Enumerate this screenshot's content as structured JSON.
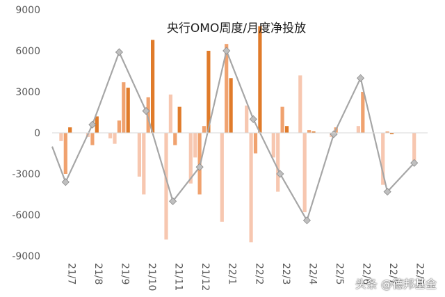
{
  "chart_data": {
    "type": "bar+line",
    "title": "央行OMO周度/月度净投放",
    "ylim": [
      -9000,
      9000
    ],
    "yticks": [
      9000,
      6000,
      3000,
      0,
      -3000,
      -6000,
      -9000
    ],
    "categories": [
      "21/7",
      "21/8",
      "21/9",
      "21/10",
      "21/11",
      "21/12",
      "22/1",
      "22/2",
      "22/3",
      "22/4",
      "22/5",
      "22/6",
      "22/7",
      "22/8"
    ],
    "weekly_bars": [
      [
        -600,
        -3000,
        400
      ],
      [
        -300,
        -900,
        1200
      ],
      [
        -400,
        -800,
        900,
        3700,
        3300
      ],
      [
        -3200,
        -4500,
        2600,
        6800
      ],
      [
        -7800,
        2800,
        -900,
        1900
      ],
      [
        -3700,
        -1800,
        -4500,
        500,
        6000
      ],
      [
        -6500,
        6500,
        4000
      ],
      [
        2000,
        -8000,
        -1500,
        7800
      ],
      [
        -1800,
        -4300,
        1900,
        500
      ],
      [
        4200,
        -5800,
        200,
        100
      ],
      [
        -300,
        400
      ],
      [
        500,
        3000
      ],
      [
        -3800,
        100,
        -100
      ],
      [
        -2100
      ]
    ],
    "monthly_line": [
      -3600,
      600,
      5900,
      1600,
      -5000,
      -2500,
      6000,
      1000,
      -3000,
      -6400,
      -100,
      4000,
      -4300,
      -2200
    ],
    "line_start_value": -1000,
    "colors": {
      "light": "#f7c7b0",
      "medium": "#f0a26f",
      "dark": "#e07b2a",
      "line": "#a6a6a6",
      "marker": "#bfbfbf",
      "axis": "#d9d9d9"
    },
    "grid": false,
    "legend": "none"
  },
  "watermark": "头条 @德邦基金"
}
